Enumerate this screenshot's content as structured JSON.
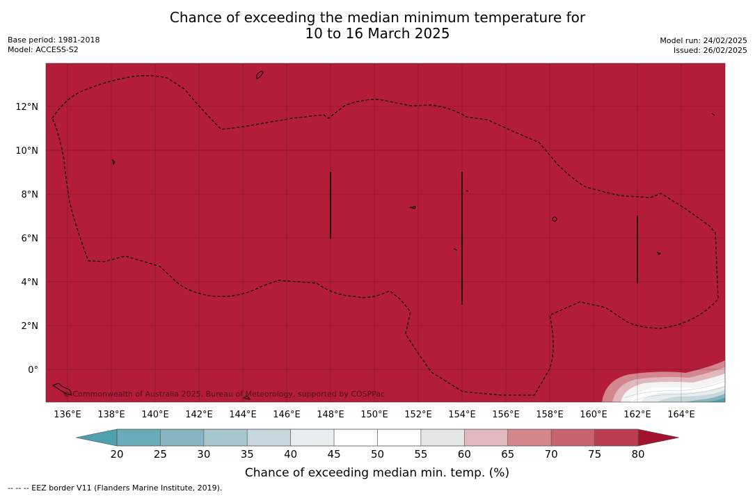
{
  "title_line1": "Chance of exceeding the median minimum temperature for",
  "title_line2": "10 to 16 March 2025",
  "meta_left": {
    "base_period": "Base period: 1981-2018",
    "model": "Model: ACCESS-S2"
  },
  "meta_right": {
    "model_run": "Model run: 24/02/2025",
    "issued": "Issued: 26/02/2025"
  },
  "map": {
    "fill_color": "#b31d3a",
    "lat_ticks": [
      {
        "value": 12,
        "label": "12°N"
      },
      {
        "value": 10,
        "label": "10°N"
      },
      {
        "value": 8,
        "label": "8°N"
      },
      {
        "value": 6,
        "label": "6°N"
      },
      {
        "value": 4,
        "label": "4°N"
      },
      {
        "value": 2,
        "label": "2°N"
      },
      {
        "value": 0,
        "label": "0°"
      }
    ],
    "lon_ticks": [
      {
        "value": 136,
        "label": "136°E"
      },
      {
        "value": 138,
        "label": "138°E"
      },
      {
        "value": 140,
        "label": "140°E"
      },
      {
        "value": 142,
        "label": "142°E"
      },
      {
        "value": 144,
        "label": "144°E"
      },
      {
        "value": 146,
        "label": "146°E"
      },
      {
        "value": 148,
        "label": "148°E"
      },
      {
        "value": 150,
        "label": "150°E"
      },
      {
        "value": 152,
        "label": "152°E"
      },
      {
        "value": 154,
        "label": "154°E"
      },
      {
        "value": 156,
        "label": "156°E"
      },
      {
        "value": 158,
        "label": "158°E"
      },
      {
        "value": 160,
        "label": "160°E"
      },
      {
        "value": 162,
        "label": "162°E"
      },
      {
        "value": 164,
        "label": "164°E"
      }
    ],
    "copyright": "© Commonwealth of Australia 2025, Bureau of Meteorology, supported by COSPPac"
  },
  "colorbar": {
    "label": "Chance of exceeding median min. temp. (%)",
    "ticks": [
      "20",
      "25",
      "30",
      "35",
      "40",
      "45",
      "50",
      "55",
      "60",
      "65",
      "70",
      "75",
      "80"
    ],
    "low_color": "#4fa0ad",
    "high_color": "#a3122f",
    "colors": [
      "#68abb9",
      "#87b4c0",
      "#a7c6cc",
      "#c7d7dc",
      "#e8eef0",
      "#ffffff",
      "#ffffff",
      "#e6e6e6",
      "#e0b8bd",
      "#d4868e",
      "#c96270",
      "#bc3d51"
    ]
  },
  "footer": "-- -- -- EEZ border V11 (Flanders Marine Institute, 2019)."
}
